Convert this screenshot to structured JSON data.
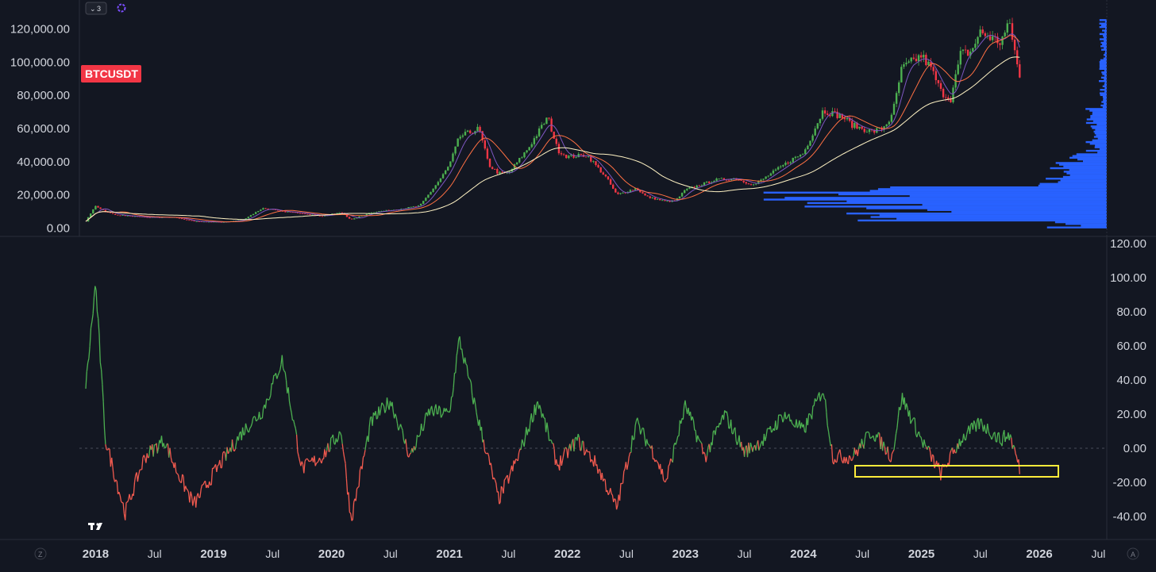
{
  "header": {
    "layout_count": "3"
  },
  "symbol_badge": {
    "label": "BTCUSDT",
    "color": "#f23645"
  },
  "price_axis": [
    "120,000.00",
    "100,000.00",
    "80,000.00",
    "60,000.00",
    "40,000.00",
    "20,000.00",
    "0.00"
  ],
  "osc_axis": [
    "120.00",
    "100.00",
    "80.00",
    "60.00",
    "40.00",
    "20.00",
    "0.00",
    "-20.00",
    "-40.00"
  ],
  "time_axis": [
    {
      "label": "2018",
      "year": true
    },
    {
      "label": "Jul",
      "year": false
    },
    {
      "label": "2019",
      "year": true
    },
    {
      "label": "Jul",
      "year": false
    },
    {
      "label": "2020",
      "year": true
    },
    {
      "label": "Jul",
      "year": false
    },
    {
      "label": "2021",
      "year": true
    },
    {
      "label": "Jul",
      "year": false
    },
    {
      "label": "2022",
      "year": true
    },
    {
      "label": "Jul",
      "year": false
    },
    {
      "label": "2023",
      "year": true
    },
    {
      "label": "Jul",
      "year": false
    },
    {
      "label": "2024",
      "year": true
    },
    {
      "label": "Jul",
      "year": false
    },
    {
      "label": "2025",
      "year": true
    },
    {
      "label": "Jul",
      "year": false
    },
    {
      "label": "2026",
      "year": true
    },
    {
      "label": "Jul",
      "year": false
    }
  ],
  "corner_labels": {
    "left": "Z",
    "right": "A"
  },
  "colors": {
    "background": "#131722",
    "up": "#4caf50",
    "down": "#f23645",
    "osc_up": "#4caf50",
    "osc_down": "#f05a4f",
    "volume_profile": "#2962ff",
    "highlight": "#ffeb3b",
    "ma_fast": "#7e57c2",
    "ma_mid": "#ff7043",
    "ma_slow": "#fff3c4"
  },
  "chart_data": [
    {
      "type": "line",
      "title": "BTCUSDT",
      "ylim": [
        0,
        125000
      ],
      "series": [
        {
          "x": [
            "2017-12",
            "2018-01",
            "2018-02",
            "2018-03",
            "2018-06",
            "2018-09",
            "2018-11",
            "2019-02",
            "2019-04",
            "2019-06",
            "2019-08",
            "2019-10",
            "2019-12",
            "2020-02",
            "2020-03",
            "2020-05",
            "2020-08",
            "2020-10",
            "2020-12",
            "2021-01",
            "2021-02",
            "2021-04",
            "2021-05",
            "2021-06",
            "2021-07",
            "2021-09",
            "2021-11",
            "2021-12",
            "2022-01",
            "2022-03",
            "2022-05",
            "2022-06",
            "2022-08",
            "2022-09",
            "2022-11",
            "2022-12",
            "2023-01",
            "2023-03",
            "2023-04",
            "2023-06",
            "2023-08",
            "2023-10",
            "2023-12",
            "2024-01",
            "2024-03",
            "2024-05",
            "2024-06",
            "2024-08",
            "2024-09",
            "2024-10",
            "2024-11",
            "2024-12",
            "2025-01",
            "2025-02",
            "2025-03",
            "2025-04",
            "2025-05",
            "2025-06",
            "2025-07",
            "2025-08",
            "2025-09",
            "2025-10",
            "2025-11"
          ],
          "y": [
            4000,
            13500,
            10000,
            8000,
            6500,
            6500,
            4000,
            3600,
            5000,
            12000,
            10000,
            9000,
            7200,
            9500,
            5000,
            9500,
            11500,
            13500,
            29000,
            38000,
            55000,
            60000,
            38000,
            33000,
            33000,
            48000,
            67000,
            47000,
            43000,
            44000,
            30000,
            20000,
            24000,
            19000,
            16000,
            16500,
            23000,
            27000,
            29000,
            30000,
            26000,
            34000,
            42000,
            45000,
            71000,
            67000,
            62000,
            58000,
            60000,
            67000,
            96000,
            100000,
            104000,
            96000,
            82000,
            78000,
            105000,
            106000,
            118000,
            115000,
            112000,
            123000,
            90000
          ]
        }
      ]
    },
    {
      "type": "line",
      "ylim": [
        -45,
        120
      ],
      "series": [
        {
          "x": [
            "2017-12",
            "2018-01",
            "2018-02",
            "2018-04",
            "2018-06",
            "2018-08",
            "2018-09",
            "2018-11",
            "2019-01",
            "2019-04",
            "2019-06",
            "2019-08",
            "2019-10",
            "2019-12",
            "2020-02",
            "2020-03",
            "2020-05",
            "2020-07",
            "2020-09",
            "2020-11",
            "2021-01",
            "2021-02",
            "2021-04",
            "2021-06",
            "2021-08",
            "2021-10",
            "2021-12",
            "2022-02",
            "2022-04",
            "2022-06",
            "2022-08",
            "2022-10",
            "2022-11",
            "2023-01",
            "2023-03",
            "2023-05",
            "2023-07",
            "2023-09",
            "2023-11",
            "2024-01",
            "2024-03",
            "2024-04",
            "2024-06",
            "2024-08",
            "2024-10",
            "2024-11",
            "2025-01",
            "2025-03",
            "2025-05",
            "2025-07",
            "2025-09",
            "2025-10",
            "2025-11"
          ],
          "y": [
            35,
            97,
            5,
            -38,
            -5,
            5,
            -10,
            -33,
            -15,
            10,
            22,
            52,
            -12,
            -5,
            10,
            -42,
            15,
            28,
            -5,
            22,
            20,
            64,
            15,
            -30,
            -5,
            28,
            -10,
            5,
            -10,
            -35,
            15,
            -5,
            -20,
            25,
            -5,
            20,
            -2,
            5,
            20,
            10,
            35,
            -5,
            -5,
            10,
            -5,
            30,
            5,
            -15,
            5,
            15,
            5,
            8,
            -12
          ]
        }
      ]
    }
  ]
}
